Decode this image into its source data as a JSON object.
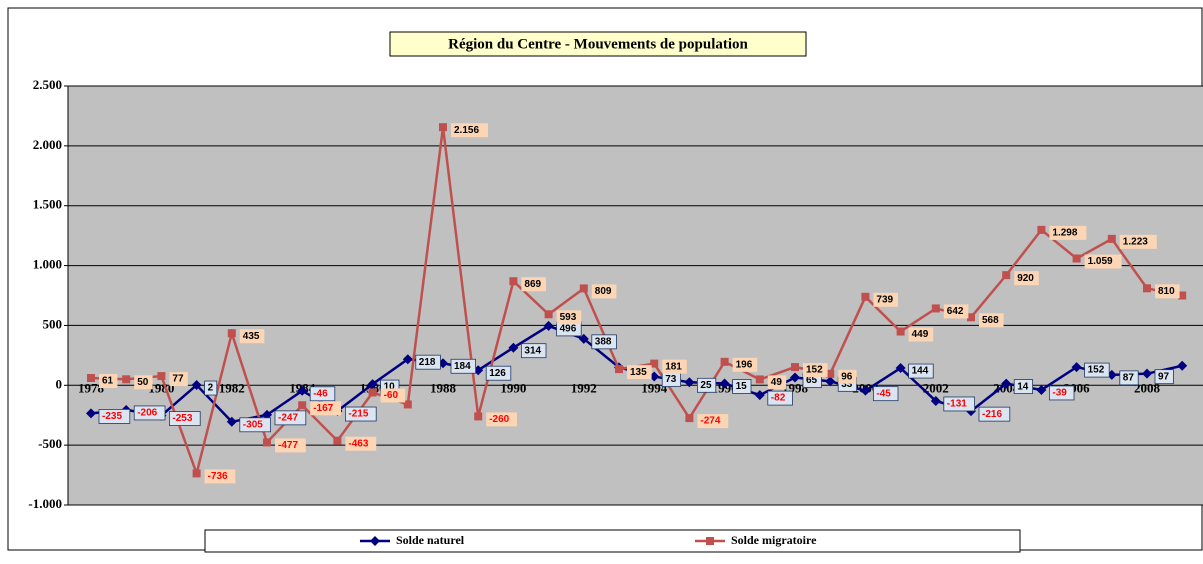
{
  "chart_data": {
    "type": "line",
    "title": "Région du Centre - Mouvements de population",
    "categories": [
      "1978",
      null,
      "1980",
      null,
      "1982",
      null,
      "1984",
      null,
      "1986",
      null,
      "1988",
      null,
      "1990",
      null,
      "1992",
      null,
      "1994",
      null,
      "1996",
      null,
      "1998",
      null,
      "2000",
      null,
      "2002",
      null,
      "2004",
      null,
      "2006",
      null,
      "2008",
      null
    ],
    "series": [
      {
        "name": "Solde naturel",
        "color": "#000080",
        "values": [
          -235,
          -206,
          -253,
          2,
          -305,
          -247,
          -46,
          -215,
          10,
          218,
          184,
          126,
          314,
          496,
          388,
          150,
          73,
          25,
          15,
          -82,
          65,
          33,
          -45,
          144,
          -131,
          -216,
          14,
          -39,
          152,
          87,
          97,
          163
        ],
        "value_labels": [
          "-235",
          "-206",
          "-253",
          "2",
          "-305",
          "-247",
          "-46",
          "-215",
          "10",
          "218",
          "184",
          "126",
          "314",
          "496",
          "388",
          null,
          "73",
          "25",
          "15",
          "-82",
          "65",
          "33",
          "-45",
          "144",
          "-131",
          "-216",
          "14",
          "-39",
          "152",
          "87",
          "97",
          null
        ]
      },
      {
        "name": "Solde migratoire",
        "color": "#c0504d",
        "values": [
          61,
          50,
          77,
          -736,
          435,
          -477,
          -167,
          -463,
          -60,
          -160,
          2156,
          -260,
          869,
          593,
          809,
          135,
          181,
          -274,
          196,
          49,
          152,
          96,
          739,
          449,
          642,
          568,
          920,
          1298,
          1059,
          1223,
          810,
          750
        ],
        "value_labels": [
          "61",
          "50",
          "77",
          "-736",
          "435",
          "-477",
          "-167",
          "-463",
          "-60",
          null,
          "2.156",
          "-260",
          "869",
          "593",
          "809",
          "135",
          "181",
          "-274",
          "196",
          "49",
          "152",
          "96",
          "739",
          "449",
          "642",
          "568",
          "920",
          "1.298",
          "1.059",
          "1.223",
          "810",
          null
        ]
      }
    ],
    "ylim": [
      -1000,
      2500
    ],
    "yticks": [
      {
        "value": -1000,
        "label": "-1.000"
      },
      -500,
      0,
      500,
      {
        "value": 1000,
        "label": "1.000"
      },
      {
        "value": 1500,
        "label": "1.500"
      },
      {
        "value": 2000,
        "label": "2.000"
      },
      {
        "value": 2500,
        "label": "2.500"
      }
    ],
    "grid": true,
    "legend": "bottom"
  }
}
